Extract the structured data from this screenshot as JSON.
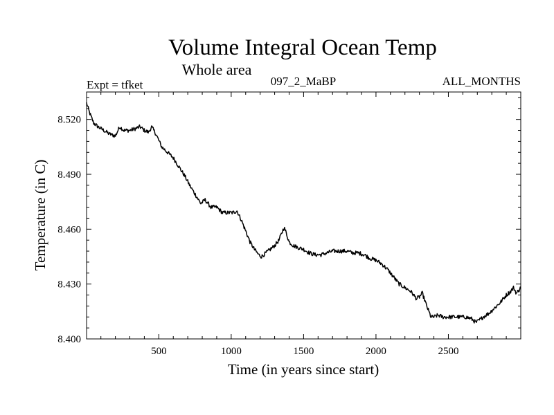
{
  "chart_data": {
    "type": "line",
    "title": "Volume Integral Ocean Temp",
    "subtitle": "Whole area",
    "header_left": "Expt = tfket",
    "header_center": "097_2_MaBP",
    "header_right": "ALL_MONTHS",
    "xlabel": "Time (in years since start)",
    "ylabel": "Temperature (in C)",
    "xlim": [
      1,
      3000
    ],
    "ylim": [
      8.4,
      8.535
    ],
    "xticks": [
      500,
      1000,
      1500,
      2000,
      2500
    ],
    "yticks": [
      "8.400",
      "8.430",
      "8.460",
      "8.490",
      "8.520"
    ],
    "grid": false,
    "series": [
      {
        "color": "#000000",
        "x": [
          1,
          20,
          50,
          80,
          120,
          160,
          200,
          230,
          260,
          300,
          340,
          370,
          400,
          430,
          450,
          480,
          520,
          560,
          600,
          640,
          680,
          720,
          760,
          790,
          820,
          860,
          900,
          940,
          980,
          1010,
          1040,
          1070,
          1100,
          1130,
          1160,
          1190,
          1210,
          1240,
          1270,
          1300,
          1330,
          1350,
          1365,
          1380,
          1400,
          1430,
          1460,
          1500,
          1540,
          1580,
          1620,
          1660,
          1700,
          1750,
          1800,
          1840,
          1880,
          1920,
          1960,
          2000,
          2040,
          2080,
          2120,
          2160,
          2200,
          2240,
          2280,
          2300,
          2320,
          2350,
          2380,
          2400,
          2430,
          2460,
          2500,
          2540,
          2580,
          2620,
          2660,
          2690,
          2710,
          2740,
          2780,
          2820,
          2860,
          2900,
          2930,
          2950,
          2970,
          3000
        ],
        "y": [
          8.529,
          8.524,
          8.518,
          8.516,
          8.514,
          8.512,
          8.511,
          8.516,
          8.514,
          8.514,
          8.515,
          8.516,
          8.514,
          8.513,
          8.516,
          8.512,
          8.505,
          8.502,
          8.499,
          8.494,
          8.489,
          8.483,
          8.478,
          8.474,
          8.476,
          8.472,
          8.472,
          8.469,
          8.469,
          8.469,
          8.47,
          8.465,
          8.459,
          8.453,
          8.449,
          8.446,
          8.445,
          8.447,
          8.449,
          8.451,
          8.454,
          8.458,
          8.461,
          8.458,
          8.453,
          8.451,
          8.45,
          8.449,
          8.447,
          8.446,
          8.446,
          8.447,
          8.448,
          8.448,
          8.448,
          8.447,
          8.447,
          8.446,
          8.444,
          8.443,
          8.441,
          8.438,
          8.434,
          8.43,
          8.428,
          8.426,
          8.422,
          8.423,
          8.425,
          8.418,
          8.412,
          8.412,
          8.413,
          8.412,
          8.412,
          8.412,
          8.412,
          8.412,
          8.411,
          8.409,
          8.41,
          8.412,
          8.414,
          8.417,
          8.42,
          8.424,
          8.426,
          8.428,
          8.425,
          8.428
        ]
      }
    ]
  }
}
